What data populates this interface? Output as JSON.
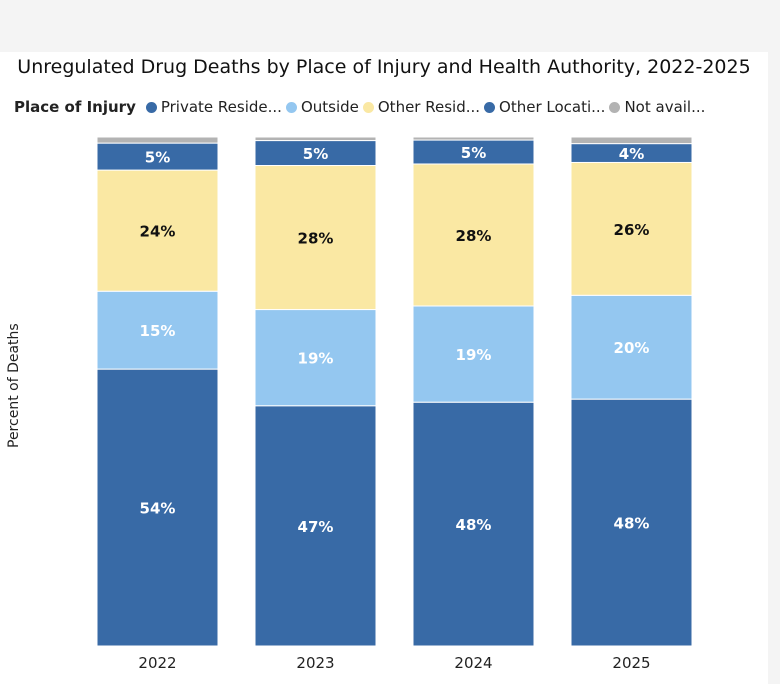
{
  "chart_data": {
    "type": "bar",
    "stacked": true,
    "title": "Unregulated Drug Deaths by Place of Injury and Health Authority, 2022-2025",
    "legend_title": "Place of Injury",
    "legend_placement": "top-left",
    "ylabel": "Percent of Deaths",
    "ylim": [
      0,
      100
    ],
    "grid": false,
    "categories": [
      "2022",
      "2023",
      "2024",
      "2025"
    ],
    "series": [
      {
        "name": "Private Reside...",
        "color": "#386aa6",
        "label_color": "#ffffff",
        "values": [
          54.4,
          47.2,
          47.9,
          48.5
        ],
        "labels": [
          "54%",
          "47%",
          "48%",
          "48%"
        ]
      },
      {
        "name": "Outside",
        "color": "#94c7f0",
        "label_color": "#ffffff",
        "values": [
          15.3,
          18.9,
          18.9,
          20.4
        ],
        "labels": [
          "15%",
          "19%",
          "19%",
          "20%"
        ]
      },
      {
        "name": "Other Resid...",
        "color": "#fae8a3",
        "label_color": "#111111",
        "values": [
          23.8,
          28.3,
          27.9,
          26.1
        ],
        "labels": [
          "24%",
          "28%",
          "28%",
          "26%"
        ]
      },
      {
        "name": "Other Locati...",
        "color": "#386aa6",
        "label_color": "#ffffff",
        "values": [
          5.3,
          4.9,
          4.7,
          3.7
        ],
        "labels": [
          "5%",
          "5%",
          "5%",
          "4%"
        ]
      },
      {
        "name": "Not avail...",
        "color": "#b3b3b3",
        "label_color": "#ffffff",
        "values": [
          1.2,
          0.7,
          0.6,
          1.3
        ],
        "labels": [
          "",
          "",
          "",
          ""
        ]
      }
    ]
  }
}
